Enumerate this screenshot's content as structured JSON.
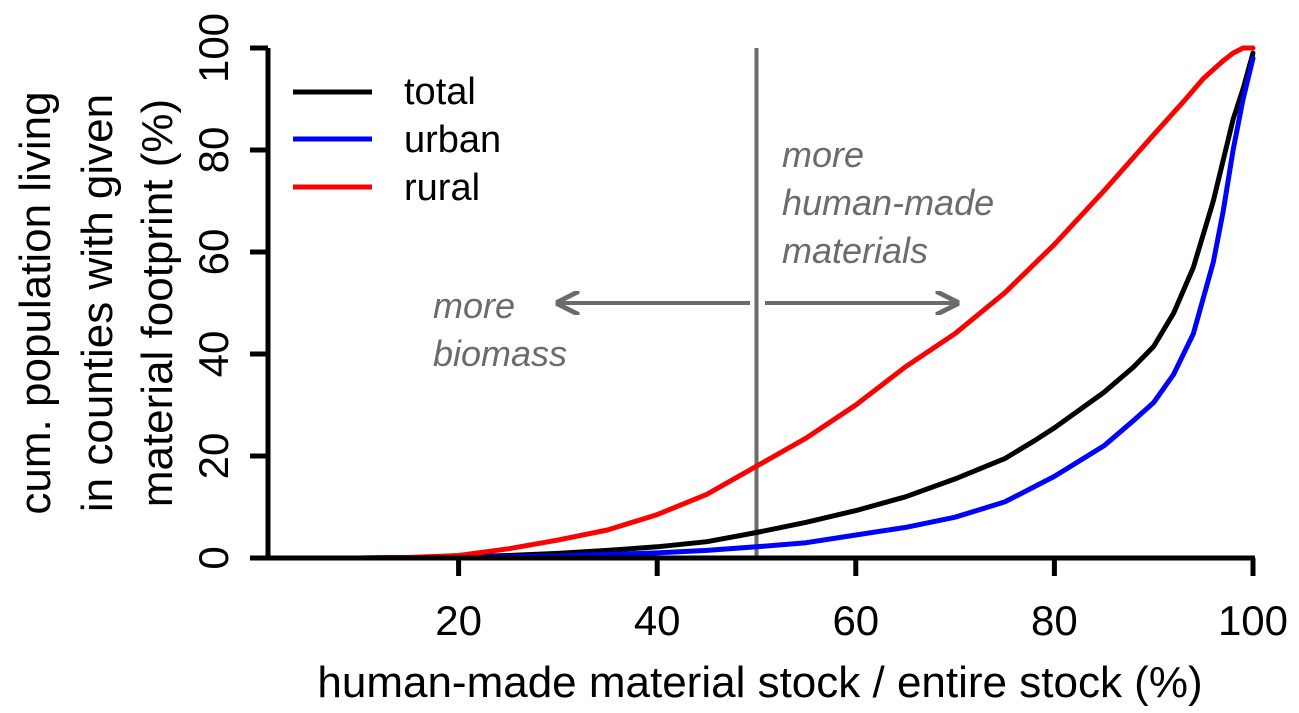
{
  "chart_data": {
    "type": "line",
    "xlabel": "human-made material stock / entire stock (%)",
    "ylabel_lines": [
      "cum. population living",
      "in counties with given",
      "material footprint (%)"
    ],
    "xlim": [
      0,
      100
    ],
    "ylim": [
      0,
      100
    ],
    "xticks": [
      20,
      40,
      60,
      80,
      100
    ],
    "yticks": [
      0,
      20,
      40,
      60,
      80,
      100
    ],
    "grid": false,
    "legend_position": "top-left",
    "reference_line_x": 50,
    "series": [
      {
        "name": "total",
        "color": "#000000",
        "x": [
          0,
          10,
          20,
          25,
          30,
          35,
          40,
          45,
          50,
          55,
          60,
          65,
          70,
          75,
          78,
          80,
          85,
          88,
          90,
          92,
          94,
          96,
          97,
          98,
          99,
          100
        ],
        "y": [
          0,
          0,
          0.2,
          0.5,
          0.9,
          1.5,
          2.2,
          3.2,
          5.0,
          7.0,
          9.3,
          12.0,
          15.5,
          19.5,
          23.0,
          25.5,
          32.5,
          37.5,
          41.5,
          48.0,
          57.0,
          70.0,
          78.0,
          86.0,
          92.0,
          99.0
        ]
      },
      {
        "name": "urban",
        "color": "#0000ff",
        "x": [
          0,
          10,
          20,
          30,
          40,
          45,
          50,
          55,
          60,
          65,
          70,
          75,
          78,
          80,
          85,
          88,
          90,
          92,
          94,
          96,
          97,
          98,
          99,
          100
        ],
        "y": [
          0,
          0,
          0.1,
          0.4,
          1.0,
          1.5,
          2.2,
          3.0,
          4.5,
          6.0,
          8.0,
          11.0,
          14.0,
          16.0,
          22.0,
          27.0,
          30.5,
          36.0,
          44.0,
          58.0,
          68.0,
          80.0,
          90.0,
          98.0
        ]
      },
      {
        "name": "rural",
        "color": "#ff0000",
        "x": [
          0,
          10,
          15,
          20,
          25,
          30,
          35,
          40,
          45,
          50,
          55,
          60,
          65,
          70,
          75,
          80,
          85,
          90,
          93,
          95,
          97,
          98,
          99,
          100
        ],
        "y": [
          0,
          0,
          0.1,
          0.5,
          1.8,
          3.5,
          5.5,
          8.5,
          12.5,
          18.0,
          23.5,
          30.0,
          37.5,
          44.0,
          52.0,
          61.5,
          72.0,
          83.0,
          89.5,
          94.0,
          97.5,
          99.0,
          100,
          100
        ]
      }
    ],
    "annotations": [
      {
        "lines": [
          "more",
          "biomass"
        ],
        "arrow": "left"
      },
      {
        "lines": [
          "more",
          "human-made",
          "materials"
        ],
        "arrow": "right"
      }
    ]
  },
  "colors": {
    "axis": "#000000",
    "reference_line": "#6b6b6b",
    "annotation": "#6b6b6b"
  }
}
